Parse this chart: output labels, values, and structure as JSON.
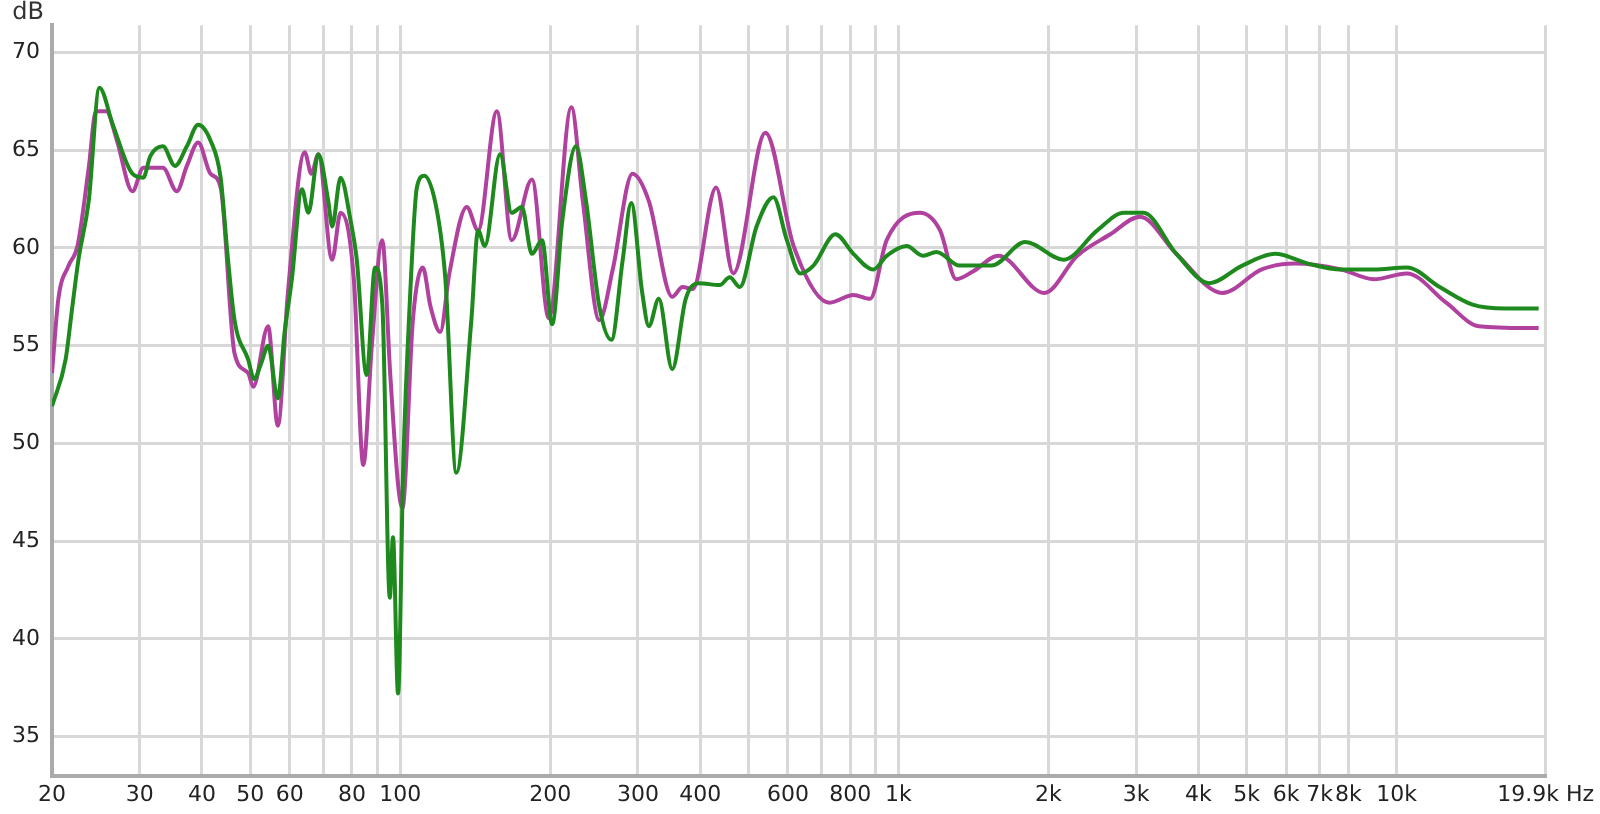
{
  "chart_data": {
    "type": "line",
    "ylabel": "dB",
    "log": "x",
    "grid": true,
    "legend": false,
    "marker": "none",
    "line_style": "solid",
    "xlim": [
      20,
      19900
    ],
    "ylim": [
      33,
      71.4
    ],
    "xticks": [
      20,
      30,
      40,
      50,
      60,
      {
        "value": 70,
        "label": null
      },
      80,
      {
        "value": 90,
        "label": null
      },
      100,
      200,
      300,
      400,
      {
        "value": 500,
        "label": null
      },
      600,
      {
        "value": 700,
        "label": null
      },
      800,
      {
        "value": 900,
        "label": null
      },
      {
        "value": 1000,
        "label": "1k"
      },
      {
        "value": 2000,
        "label": "2k"
      },
      {
        "value": 3000,
        "label": "3k"
      },
      {
        "value": 4000,
        "label": "4k"
      },
      {
        "value": 5000,
        "label": "5k"
      },
      {
        "value": 6000,
        "label": "6k"
      },
      {
        "value": 7000,
        "label": "7k"
      },
      {
        "value": 8000,
        "label": "8k"
      },
      {
        "value": 10000,
        "label": "10k"
      },
      {
        "value": 19900,
        "label": "19.9k Hz"
      }
    ],
    "yticks": [
      35,
      40,
      45,
      50,
      55,
      60,
      65,
      70
    ],
    "series": [
      {
        "color": "#1e8a1e",
        "x": [
          20,
          21.3,
          21.9,
          22.6,
          23.7,
          24.9,
          26.5,
          29,
          30.5,
          31.5,
          33.4,
          35.3,
          37.3,
          39.3,
          41.6,
          43.6,
          45,
          46.5,
          49.5,
          50.9,
          52.6,
          54.3,
          56.8,
          58.6,
          60.6,
          63.5,
          65.4,
          68.5,
          71.7,
          73,
          75.9,
          79.5,
          81.8,
          85.6,
          89,
          92.1,
          95.3,
          96.7,
          99,
          101.4,
          104.6,
          108,
          111.8,
          118.7,
          123.2,
          129.6,
          138.9,
          143.3,
          147.8,
          158.6,
          167.4,
          175.4,
          183.8,
          192.6,
          201.8,
          211.5,
          225.2,
          236,
          251,
          265.4,
          279.6,
          290.8,
          306,
          315.5,
          330.3,
          351.5,
          374.1,
          398,
          437.4,
          458.5,
          480.3,
          519,
          561,
          597,
          635,
          675,
          747,
          812,
          890,
          947,
          1038,
          1121,
          1192,
          1326,
          1358,
          1538,
          1796,
          2147,
          2506,
          2834,
          3102,
          3612,
          4206,
          4898,
          5700,
          6640,
          7730,
          9000,
          10480,
          12200,
          14200,
          16550,
          19270
        ],
        "values": [
          51.9,
          54.3,
          56.7,
          59.4,
          62.4,
          68.2,
          66.3,
          63.8,
          63.6,
          64.7,
          65.2,
          64.2,
          65.2,
          66.3,
          65.5,
          63.6,
          59.7,
          56.3,
          54.3,
          53.3,
          54.1,
          55,
          52.3,
          55.7,
          58.4,
          63,
          61.8,
          64.8,
          62.4,
          61.1,
          63.6,
          61.4,
          59.4,
          53.5,
          59,
          57,
          42.1,
          45.2,
          37.2,
          48.9,
          57.4,
          63.1,
          63.7,
          61.8,
          58.4,
          48.5,
          56.3,
          60.9,
          60.1,
          64.8,
          61.8,
          62.1,
          59.7,
          60.4,
          56.1,
          61.4,
          65.2,
          62.4,
          57,
          55.3,
          59.4,
          62.3,
          57.7,
          56,
          57.4,
          53.8,
          57.4,
          58.2,
          58.1,
          58.5,
          58,
          61.1,
          62.6,
          60.4,
          58.7,
          59.1,
          60.7,
          59.7,
          58.9,
          59.6,
          60.1,
          59.6,
          59.8,
          59.1,
          59.1,
          59.1,
          60.3,
          59.4,
          60.9,
          61.8,
          61.8,
          59.7,
          58.2,
          59.1,
          59.7,
          59.2,
          58.9,
          58.9,
          59,
          58,
          57.1,
          56.9,
          56.9
        ]
      },
      {
        "color": "#b0419f",
        "x": [
          20,
          20.6,
          21.6,
          22.5,
          23.7,
          24.5,
          25.7,
          27,
          29,
          30.5,
          33.4,
          35.6,
          37.3,
          39.3,
          41.6,
          43.6,
          46.5,
          49.5,
          50.7,
          54.3,
          56.8,
          59.5,
          64.3,
          66.3,
          68.5,
          73,
          75.9,
          80.7,
          84.3,
          87.7,
          92,
          95.5,
          99,
          101,
          106,
          111,
          115,
          120.3,
          125.5,
          136,
          143.3,
          156.3,
          167.4,
          183.8,
          198.7,
          220.5,
          232.5,
          251,
          267,
          292.5,
          315.5,
          351.5,
          368.5,
          386.5,
          430.5,
          466,
          540.7,
          616,
          727.6,
          812,
          877,
          947,
          1104,
          1212,
          1306,
          1411,
          1587,
          1962,
          2285,
          2662,
          3053,
          3612,
          4470,
          5360,
          6240,
          7730,
          9000,
          10480,
          12570,
          14620,
          19270
        ],
        "values": [
          53.6,
          57.4,
          59.1,
          60.1,
          64.1,
          67,
          67,
          65.5,
          62.9,
          64.1,
          64.1,
          62.9,
          64.2,
          65.4,
          63.8,
          63.1,
          54.6,
          53.6,
          52.9,
          56,
          50.9,
          57.7,
          64.9,
          63.8,
          64.8,
          59.4,
          61.8,
          58.4,
          48.9,
          55,
          60.4,
          53.5,
          47.9,
          46.7,
          56.3,
          59,
          57,
          55.7,
          58.7,
          62.1,
          60.9,
          67,
          60.4,
          63.5,
          56.4,
          67.2,
          62.4,
          56.3,
          58.9,
          63.8,
          62.4,
          57.5,
          58,
          57.9,
          63.1,
          58.7,
          65.9,
          60.1,
          57.2,
          57.6,
          57.4,
          60.4,
          61.8,
          60.9,
          58.4,
          58.8,
          59.6,
          57.7,
          59.6,
          60.7,
          61.6,
          59.7,
          57.7,
          58.9,
          59.2,
          58.9,
          58.4,
          58.7,
          57.2,
          56,
          55.9
        ]
      }
    ]
  }
}
